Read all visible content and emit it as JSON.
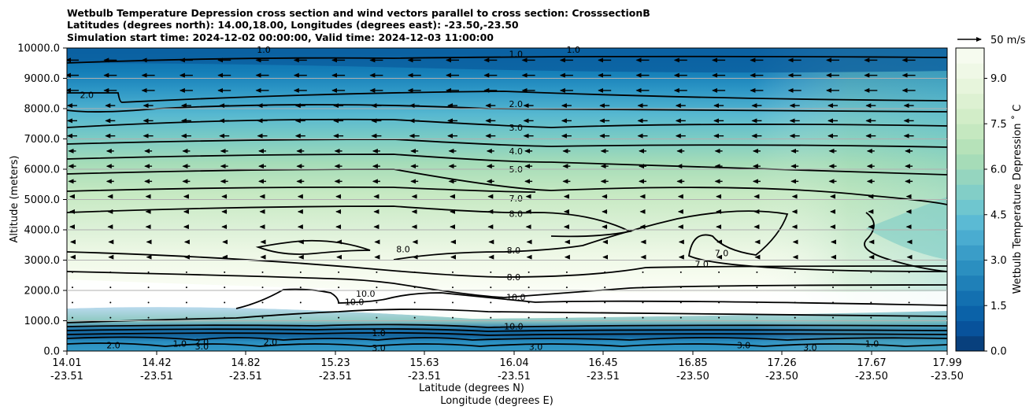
{
  "chart_data": {
    "type": "contourf",
    "title_lines": [
      "Wetbulb Temperature Depression cross section and wind vectors parallel to cross section: CrosssectionB",
      "Latitudes (degrees north): 14.00,18.00, Longitudes (degrees east): -23.50,-23.50",
      "Simulation start time: 2024-12-02 00:00:00, Valid time: 2024-12-03 11:00:00"
    ],
    "ylabel": "Altitude (meters)",
    "xlabel_lat": "Latitude (degrees N)",
    "xlabel_lon": "Longitude (degrees E)",
    "ylim": [
      0,
      10000
    ],
    "y_ticks": [
      "0.0",
      "1000.0",
      "2000.0",
      "3000.0",
      "4000.0",
      "5000.0",
      "6000.0",
      "7000.0",
      "8000.0",
      "9000.0",
      "10000.0"
    ],
    "x_ticks": [
      {
        "lat": "14.01",
        "lon": "-23.51"
      },
      {
        "lat": "14.42",
        "lon": "-23.51"
      },
      {
        "lat": "14.82",
        "lon": "-23.51"
      },
      {
        "lat": "15.23",
        "lon": "-23.51"
      },
      {
        "lat": "15.63",
        "lon": "-23.51"
      },
      {
        "lat": "16.04",
        "lon": "-23.51"
      },
      {
        "lat": "16.45",
        "lon": "-23.51"
      },
      {
        "lat": "16.85",
        "lon": "-23.50"
      },
      {
        "lat": "17.26",
        "lon": "-23.50"
      },
      {
        "lat": "17.67",
        "lon": "-23.50"
      },
      {
        "lat": "17.99",
        "lon": "-23.50"
      }
    ],
    "colorbar": {
      "label": "Wetbulb Temperature Depression ˚ C",
      "range": [
        0,
        10
      ],
      "ticks": [
        "0.0",
        "1.5",
        "3.0",
        "4.5",
        "6.0",
        "7.5",
        "9.0"
      ],
      "levels": 20
    },
    "quiver_key": "50 m/s",
    "contour_labels": [
      {
        "text": "1.0",
        "lat": 16.04,
        "alt": 9800
      },
      {
        "text": "1.0",
        "lat": 14.9,
        "alt": 9950
      },
      {
        "text": "1.0",
        "lat": 16.3,
        "alt": 9950
      },
      {
        "text": "2.0",
        "lat": 14.1,
        "alt": 8450
      },
      {
        "text": "2.0",
        "lat": 16.04,
        "alt": 8150
      },
      {
        "text": "3.0",
        "lat": 16.04,
        "alt": 7380
      },
      {
        "text": "4.0",
        "lat": 16.04,
        "alt": 6600
      },
      {
        "text": "5.0",
        "lat": 16.04,
        "alt": 6000
      },
      {
        "text": "7.0",
        "lat": 16.04,
        "alt": 5040
      },
      {
        "text": "8.0",
        "lat": 16.04,
        "alt": 4530
      },
      {
        "text": "8.0",
        "lat": 15.53,
        "alt": 3370
      },
      {
        "text": "8.0",
        "lat": 16.03,
        "alt": 3320
      },
      {
        "text": "7.0",
        "lat": 16.97,
        "alt": 3240
      },
      {
        "text": "7.0",
        "lat": 16.88,
        "alt": 2870
      },
      {
        "text": "8.0",
        "lat": 16.03,
        "alt": 2440
      },
      {
        "text": "10.0",
        "lat": 16.04,
        "alt": 1780
      },
      {
        "text": "10.0",
        "lat": 15.36,
        "alt": 1890
      },
      {
        "text": "10.0",
        "lat": 15.31,
        "alt": 1620
      },
      {
        "text": "10.0",
        "lat": 16.03,
        "alt": 820
      },
      {
        "text": "1.0",
        "lat": 15.42,
        "alt": 600
      },
      {
        "text": "2.0",
        "lat": 14.62,
        "alt": 300
      },
      {
        "text": "3.0",
        "lat": 14.62,
        "alt": 160
      },
      {
        "text": "1.0",
        "lat": 14.52,
        "alt": 250
      },
      {
        "text": "3.0",
        "lat": 15.42,
        "alt": 100
      },
      {
        "text": "3.0",
        "lat": 16.13,
        "alt": 140
      },
      {
        "text": "3.0",
        "lat": 17.37,
        "alt": 120
      },
      {
        "text": "3.0",
        "lat": 17.07,
        "alt": 200
      },
      {
        "text": "1.0",
        "lat": 17.65,
        "alt": 250
      },
      {
        "text": "2.0",
        "lat": 14.22,
        "alt": 200
      },
      {
        "text": "2.0",
        "lat": 14.93,
        "alt": 300
      }
    ]
  }
}
